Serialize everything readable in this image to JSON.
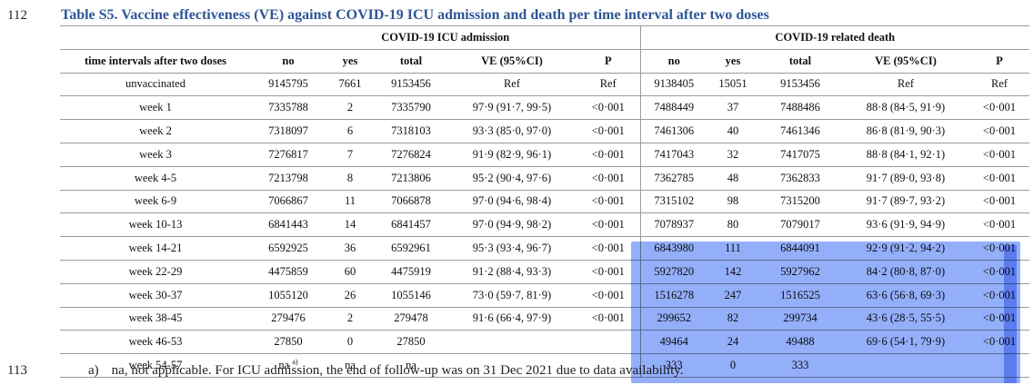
{
  "line_numbers": {
    "top": "112",
    "bottom": "113"
  },
  "title": "Table S5. Vaccine effectiveness (VE) against COVID-19 ICU admission and death per time interval after two doses",
  "groups": {
    "icu": "COVID-19 ICU admission",
    "death": "COVID-19 related death"
  },
  "columns": [
    "time intervals after two doses",
    "no",
    "yes",
    "total",
    "VE (95%CI)",
    "P",
    "no",
    "yes",
    "total",
    "VE (95%CI)",
    "P"
  ],
  "rows": [
    [
      "unvaccinated",
      "9145795",
      "7661",
      "9153456",
      "Ref",
      "Ref",
      "9138405",
      "15051",
      "9153456",
      "Ref",
      "Ref"
    ],
    [
      "week 1",
      "7335788",
      "2",
      "7335790",
      "97·9 (91·7, 99·5)",
      "<0·001",
      "7488449",
      "37",
      "7488486",
      "88·8 (84·5, 91·9)",
      "<0·001"
    ],
    [
      "week 2",
      "7318097",
      "6",
      "7318103",
      "93·3 (85·0, 97·0)",
      "<0·001",
      "7461306",
      "40",
      "7461346",
      "86·8 (81·9, 90·3)",
      "<0·001"
    ],
    [
      "week 3",
      "7276817",
      "7",
      "7276824",
      "91·9 (82·9, 96·1)",
      "<0·001",
      "7417043",
      "32",
      "7417075",
      "88·8 (84·1, 92·1)",
      "<0·001"
    ],
    [
      "week 4-5",
      "7213798",
      "8",
      "7213806",
      "95·2 (90·4, 97·6)",
      "<0·001",
      "7362785",
      "48",
      "7362833",
      "91·7 (89·0, 93·8)",
      "<0·001"
    ],
    [
      "week 6-9",
      "7066867",
      "11",
      "7066878",
      "97·0 (94·6, 98·4)",
      "<0·001",
      "7315102",
      "98",
      "7315200",
      "91·7 (89·7, 93·2)",
      "<0·001"
    ],
    [
      "week 10-13",
      "6841443",
      "14",
      "6841457",
      "97·0 (94·9, 98·2)",
      "<0·001",
      "7078937",
      "80",
      "7079017",
      "93·6 (91·9, 94·9)",
      "<0·001"
    ],
    [
      "week 14-21",
      "6592925",
      "36",
      "6592961",
      "95·3 (93·4, 96·7)",
      "<0·001",
      "6843980",
      "111",
      "6844091",
      "92·9 (91·2, 94·2)",
      "<0·001"
    ],
    [
      "week 22-29",
      "4475859",
      "60",
      "4475919",
      "91·2 (88·4, 93·3)",
      "<0·001",
      "5927820",
      "142",
      "5927962",
      "84·2 (80·8, 87·0)",
      "<0·001"
    ],
    [
      "week 30-37",
      "1055120",
      "26",
      "1055146",
      "73·0 (59·7, 81·9)",
      "<0·001",
      "1516278",
      "247",
      "1516525",
      "63·6 (56·8, 69·3)",
      "<0·001"
    ],
    [
      "week 38-45",
      "279476",
      "2",
      "279478",
      "91·6 (66·4, 97·9)",
      "<0·001",
      "299652",
      "82",
      "299734",
      "43·6 (28·5, 55·5)",
      "<0·001"
    ],
    [
      "week 46-53",
      "27850",
      "0",
      "27850",
      "",
      "",
      "49464",
      "24",
      "49488",
      "69·6 (54·1, 79·9)",
      "<0·001"
    ],
    [
      "week 54-57",
      "na",
      "na",
      "na",
      "",
      "",
      "333",
      "0",
      "333",
      "",
      ""
    ]
  ],
  "na_superscript": "a)",
  "footnote": {
    "mark": "a)",
    "text": "na, not applicable. For ICU admission, the end of follow-up was on 31 Dec 2021 due to data availability."
  },
  "colors": {
    "title": "#2e5597",
    "highlight": "#3c6ef5"
  }
}
